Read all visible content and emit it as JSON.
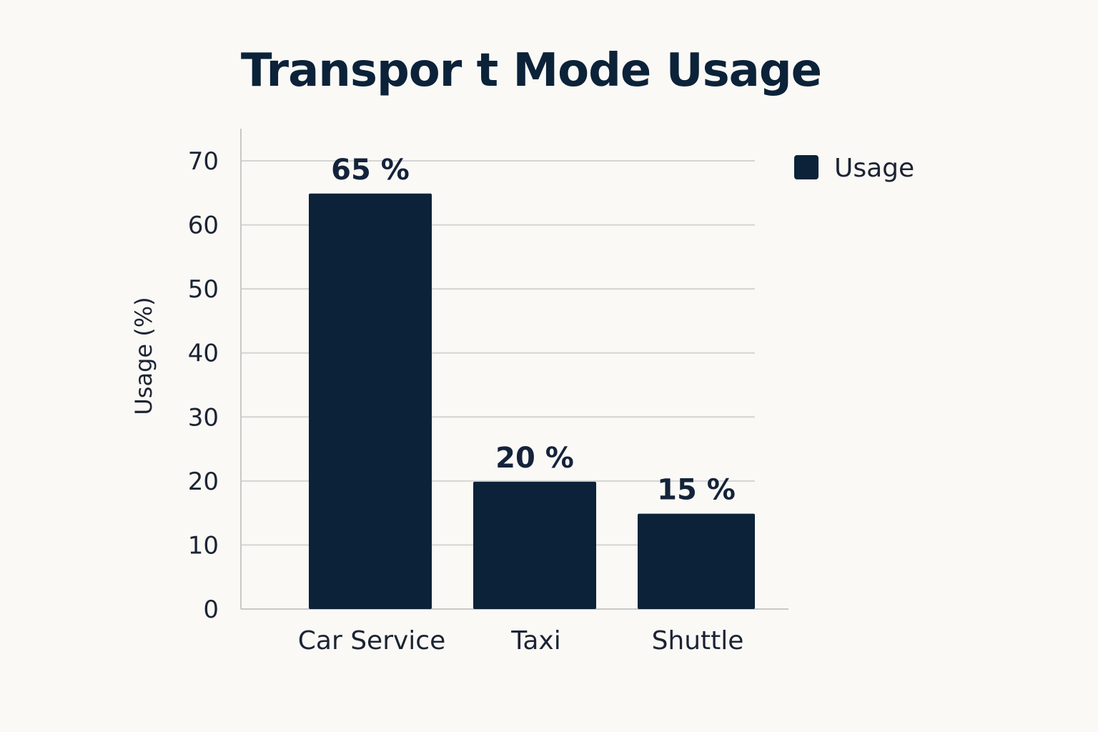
{
  "chart_data": {
    "type": "bar",
    "title": "Transpor t Mode Usage",
    "xlabel": "",
    "ylabel": "Usage (%)",
    "categories": [
      "Car Service",
      "Taxi",
      "Shuttle"
    ],
    "series": [
      {
        "name": "Usage",
        "values": [
          65,
          20,
          15
        ],
        "data_labels": [
          "65 %",
          "20 %",
          "15 %"
        ],
        "color": "#0b2239"
      }
    ],
    "ylim": [
      0,
      70
    ],
    "yticks": [
      0,
      10,
      20,
      30,
      40,
      50,
      60,
      70
    ],
    "grid": true,
    "legend": "top-right"
  }
}
